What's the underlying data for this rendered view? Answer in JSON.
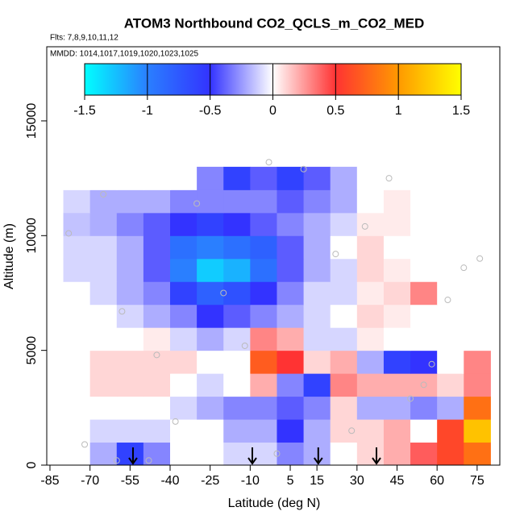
{
  "chart_data": {
    "type": "heatmap",
    "title": "ATOM3 Northbound CO2_QCLS_m_CO2_MED",
    "annotations": [
      "Flts: 7,8,9,10,11,12",
      "MMDD: 1014,1017,1019,1020,1023,1025"
    ],
    "x_label": "Latitude (deg N)",
    "y_label": "Altitude (m)",
    "xlim": [
      -86.2,
      83.5
    ],
    "ylim": [
      0,
      18230
    ],
    "xticks": [
      -85,
      -70,
      -55,
      -40,
      -25,
      -10,
      5,
      15,
      30,
      45,
      60,
      75
    ],
    "yticks": [
      0,
      5000,
      10000,
      15000
    ],
    "lat_edges": [
      -80,
      -70,
      -60,
      -50,
      -40,
      -30,
      -20,
      -10,
      0,
      10,
      20,
      30,
      40,
      50,
      60,
      70,
      80
    ],
    "alt_edges": [
      0,
      1000,
      2000,
      3000,
      4000,
      5000,
      6000,
      7000,
      8000,
      9000,
      10000,
      11000,
      12000,
      13000
    ],
    "z": [
      [
        0,
        -0.2,
        -0.6,
        -0.3,
        0,
        0,
        -0.1,
        -0.1,
        -0.3,
        -0.2,
        0,
        0.1,
        0.2,
        0.4,
        0.6,
        0.8
      ],
      [
        0,
        -0.1,
        -0.1,
        -0.1,
        0,
        0,
        -0.2,
        -0.2,
        -0.5,
        -0.2,
        0.1,
        0.1,
        0.2,
        0,
        0.6,
        1.2
      ],
      [
        0,
        0,
        0,
        0,
        -0.1,
        -0.2,
        -0.3,
        -0.3,
        -0.4,
        -0.3,
        0.1,
        -0.2,
        -0.2,
        -0.3,
        -0.2,
        0.8
      ],
      [
        0,
        0.1,
        0.1,
        0.1,
        0,
        -0.1,
        0,
        0.2,
        -0.3,
        -0.6,
        0.3,
        0.2,
        0.2,
        0.2,
        0.1,
        0.3
      ],
      [
        0,
        0.1,
        0.1,
        0.1,
        0.1,
        0,
        0,
        0.7,
        0.5,
        0.1,
        0.2,
        -0.2,
        -0.6,
        -0.5,
        0,
        0.3
      ],
      [
        0,
        0,
        0,
        0.05,
        -0.1,
        -0.2,
        -0.1,
        0.3,
        0.2,
        -0.1,
        -0.1,
        0.05,
        0,
        0,
        0,
        0
      ],
      [
        0,
        0,
        -0.1,
        -0.2,
        -0.3,
        -0.5,
        -0.4,
        -0.3,
        -0.2,
        -0.1,
        0,
        0.1,
        0.05,
        0,
        0,
        0
      ],
      [
        0,
        -0.1,
        -0.2,
        -0.3,
        -0.6,
        -0.8,
        -0.7,
        -0.5,
        -0.3,
        -0.1,
        -0.1,
        0.05,
        0.1,
        0.3,
        0,
        0
      ],
      [
        -0.1,
        -0.1,
        -0.2,
        -0.4,
        -1.0,
        -1.3,
        -1.2,
        -0.9,
        -0.4,
        -0.2,
        -0.1,
        0.1,
        0.05,
        0,
        0,
        0
      ],
      [
        -0.1,
        -0.1,
        -0.2,
        -0.4,
        -0.9,
        -1.0,
        -0.9,
        -0.8,
        -0.4,
        -0.2,
        0,
        0.1,
        0,
        0,
        0,
        0
      ],
      [
        -0.15,
        -0.2,
        -0.3,
        -0.4,
        -0.5,
        -0.6,
        -0.5,
        -0.4,
        -0.3,
        -0.2,
        -0.1,
        0.05,
        0.05,
        0,
        0,
        0
      ],
      [
        -0.1,
        -0.2,
        -0.2,
        -0.2,
        -0.3,
        -0.3,
        -0.3,
        -0.3,
        -0.4,
        -0.3,
        -0.2,
        0,
        0.05,
        0,
        0,
        0
      ],
      [
        0,
        0,
        0,
        0,
        0,
        -0.3,
        -0.6,
        -0.4,
        -0.6,
        -0.4,
        -0.2,
        0,
        0,
        0,
        0,
        0
      ]
    ],
    "colorbar": {
      "lim": [
        -1.5,
        1.5
      ],
      "ticks": [
        -1.5,
        -1.0,
        -0.5,
        0.0,
        0.5,
        1.0,
        1.5
      ],
      "colors": [
        "#00ffff",
        "#2a7fff",
        "#3333ff",
        "#ffffff",
        "#ff3333",
        "#ff9900",
        "#ffff00"
      ]
    },
    "arrows_x": [
      -53.9,
      -9.2,
      15.5,
      37.3
    ],
    "points": {
      "x": [
        -78,
        -72,
        -65,
        -58,
        -45,
        -38,
        -30,
        -20,
        -12,
        -3,
        10,
        22,
        33,
        42,
        50,
        58,
        64,
        70,
        76,
        -60,
        -48,
        0,
        28,
        55
      ],
      "y": [
        10100,
        900,
        11800,
        6700,
        4800,
        1900,
        11400,
        7500,
        5200,
        13200,
        12900,
        9200,
        10400,
        12500,
        2900,
        4400,
        7200,
        8600,
        9000,
        200,
        200,
        500,
        1500,
        3500
      ]
    }
  }
}
